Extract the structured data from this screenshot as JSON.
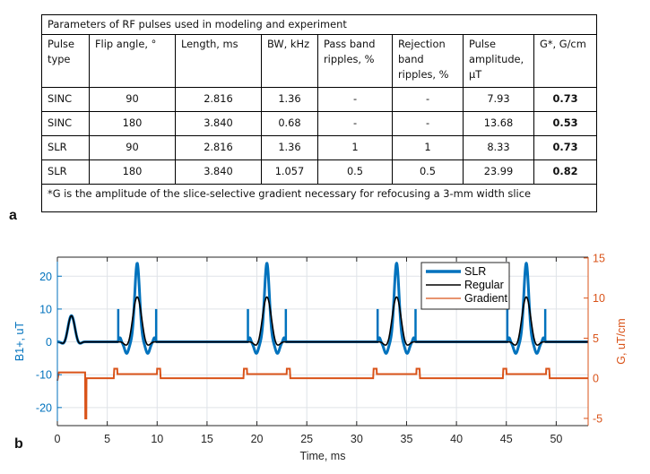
{
  "table": {
    "caption": "Parameters of RF pulses used in modeling and experiment",
    "headers": [
      "Pulse type",
      "Flip angle, °",
      "Length, ms",
      "BW, kHz",
      "Pass band ripples, %",
      "Rejection band ripples, %",
      "Pulse amplitude, μT",
      "G*, G/cm"
    ],
    "rows": [
      [
        "SINC",
        "90",
        "2.816",
        "1.36",
        "-",
        "-",
        "7.93",
        "0.73"
      ],
      [
        "SINC",
        "180",
        "3.840",
        "0.68",
        "-",
        "-",
        "13.68",
        "0.53"
      ],
      [
        "SLR",
        "90",
        "2.816",
        "1.36",
        "1",
        "1",
        "8.33",
        "0.73"
      ],
      [
        "SLR",
        "180",
        "3.840",
        "1.057",
        "0.5",
        "0.5",
        "23.99",
        "0.82"
      ]
    ],
    "footnote": "*G is the amplitude of the slice-selective gradient necessary for refocusing a 3-mm width slice"
  },
  "panel_labels": {
    "a": "a",
    "b": "b"
  },
  "chart_data": {
    "type": "line",
    "xlabel": "Time, ms",
    "ylabel_left": "B1+, uT",
    "ylabel_right": "G, uT/cm",
    "xlim": [
      0,
      53.2
    ],
    "ylim_left": [
      -25.5,
      25.8
    ],
    "ylim_right": [
      -5.9,
      15.1
    ],
    "x_ticks": [
      "0",
      "5",
      "10",
      "15",
      "20",
      "25",
      "30",
      "35",
      "40",
      "45",
      "50"
    ],
    "y_ticks_left": [
      "-20",
      "-10",
      "0",
      "10",
      "20"
    ],
    "y_ticks_right": [
      "-5",
      "0",
      "5",
      "10",
      "15"
    ],
    "grid": true,
    "legend": {
      "position": "top-center",
      "entries": [
        "SLR",
        "Regular",
        "Gradient"
      ]
    },
    "colors": {
      "SLR": "#0072BD",
      "Regular": "#000000",
      "Gradient": "#D95319",
      "left_axis": "#0072BD",
      "right_axis": "#D95319"
    },
    "series": [
      {
        "name": "SLR",
        "axis": "left",
        "excitation": {
          "center": 1.408,
          "duration": 2.816,
          "peak": 8.33
        },
        "refocusing_centers": [
          8,
          21,
          34,
          47
        ],
        "refocusing": {
          "duration": 3.84,
          "peak": 23.99,
          "edge_spike": 10,
          "side_lobe": -3.5
        }
      },
      {
        "name": "Regular",
        "axis": "left",
        "excitation": {
          "center": 1.408,
          "duration": 2.816,
          "peak": 7.93
        },
        "refocusing_centers": [
          8,
          21,
          34,
          47
        ],
        "refocusing": {
          "duration": 3.84,
          "peak": 13.68,
          "side_lobe": -1.9
        }
      },
      {
        "name": "Gradient",
        "axis": "right",
        "excitation_level": 0.73,
        "rephase_level": -5,
        "refocus_level": 0.53,
        "crusher_level": 1.2,
        "baseline": 0
      }
    ]
  }
}
